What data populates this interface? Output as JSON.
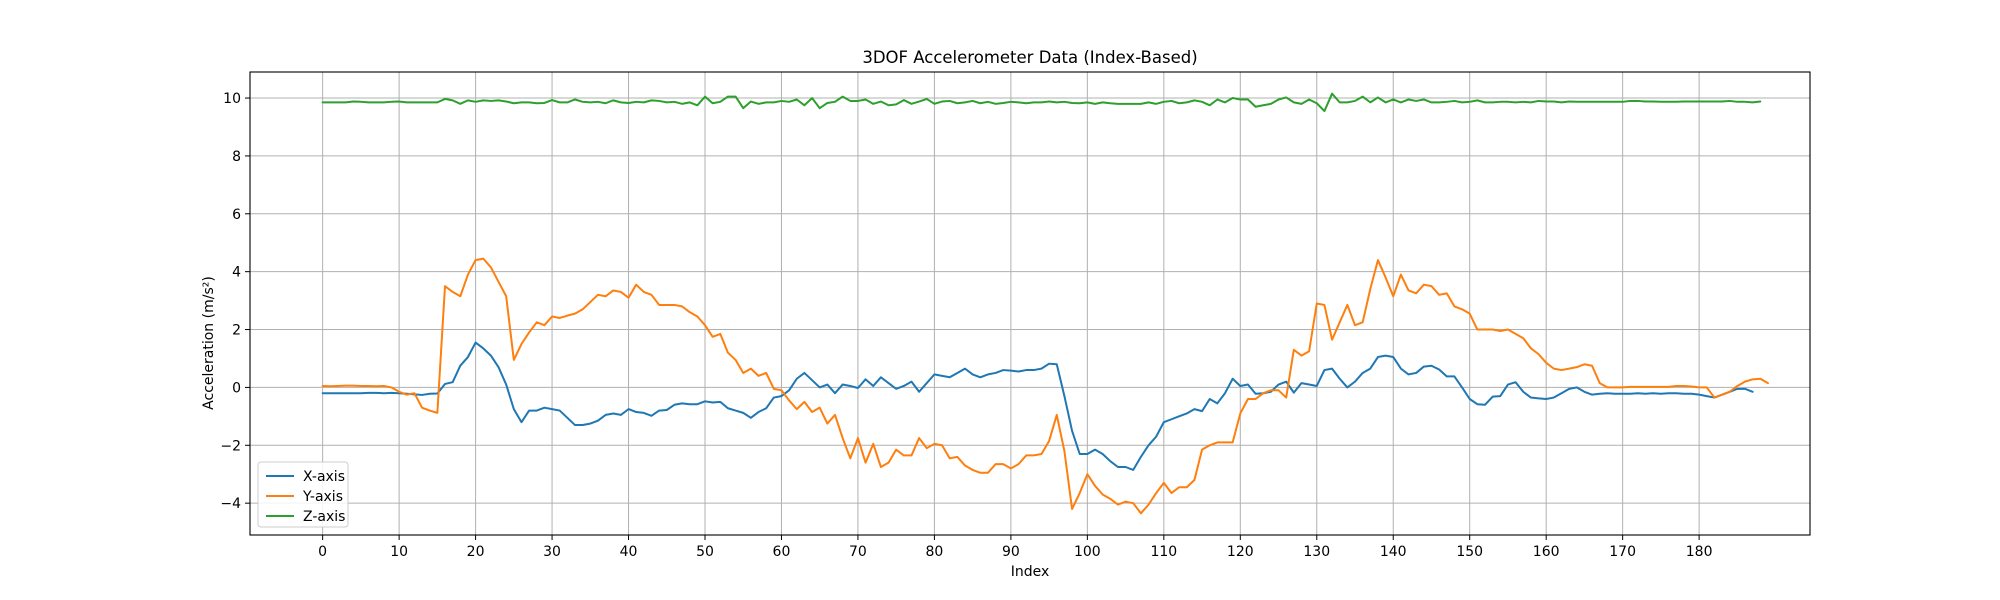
{
  "chart_data": {
    "type": "line",
    "title": "3DOF Accelerometer Data (Index-Based)",
    "xlabel": "Index",
    "ylabel": "Acceleration (m/s²)",
    "xlim": [
      -9.5,
      194.5
    ],
    "ylim": [
      -5.1,
      10.9
    ],
    "xticks": [
      0,
      10,
      20,
      30,
      40,
      50,
      60,
      70,
      80,
      90,
      100,
      110,
      120,
      130,
      140,
      150,
      160,
      170,
      180
    ],
    "yticks": [
      -4,
      -2,
      0,
      2,
      4,
      6,
      8,
      10
    ],
    "grid": true,
    "legend_position": "lower-left",
    "series": [
      {
        "name": "X-axis",
        "color": "#1f77b4",
        "values": [
          -0.2,
          -0.2,
          -0.2,
          -0.2,
          -0.2,
          -0.2,
          -0.19,
          -0.19,
          -0.2,
          -0.19,
          -0.2,
          -0.22,
          -0.24,
          -0.26,
          -0.22,
          -0.21,
          0.12,
          0.18,
          0.75,
          1.05,
          1.55,
          1.35,
          1.1,
          0.7,
          0.1,
          -0.75,
          -1.2,
          -0.8,
          -0.8,
          -0.7,
          -0.75,
          -0.8,
          -1.05,
          -1.3,
          -1.3,
          -1.25,
          -1.15,
          -0.95,
          -0.9,
          -0.95,
          -0.75,
          -0.85,
          -0.88,
          -0.98,
          -0.8,
          -0.78,
          -0.6,
          -0.55,
          -0.58,
          -0.58,
          -0.48,
          -0.52,
          -0.5,
          -0.72,
          -0.8,
          -0.88,
          -1.05,
          -0.85,
          -0.72,
          -0.35,
          -0.3,
          -0.1,
          0.3,
          0.5,
          0.25,
          0.0,
          0.1,
          -0.2,
          0.1,
          0.05,
          -0.02,
          0.28,
          0.05,
          0.35,
          0.15,
          -0.05,
          0.05,
          0.2,
          -0.15,
          0.15,
          0.45,
          0.4,
          0.35,
          0.5,
          0.65,
          0.45,
          0.35,
          0.45,
          0.5,
          0.6,
          0.58,
          0.55,
          0.6,
          0.6,
          0.65,
          0.82,
          0.8,
          -0.3,
          -1.5,
          -2.3,
          -2.3,
          -2.15,
          -2.3,
          -2.55,
          -2.75,
          -2.75,
          -2.85,
          -2.4,
          -2.0,
          -1.7,
          -1.2,
          -1.1,
          -1.0,
          -0.9,
          -0.75,
          -0.82,
          -0.4,
          -0.55,
          -0.2,
          0.3,
          0.05,
          0.1,
          -0.22,
          -0.2,
          -0.15,
          0.1,
          0.2,
          -0.18,
          0.15,
          0.1,
          0.05,
          0.6,
          0.65,
          0.3,
          0.0,
          0.2,
          0.5,
          0.65,
          1.05,
          1.1,
          1.05,
          0.65,
          0.45,
          0.5,
          0.72,
          0.75,
          0.62,
          0.38,
          0.38,
          0.0,
          -0.4,
          -0.58,
          -0.6,
          -0.32,
          -0.3,
          0.1,
          0.18,
          -0.15,
          -0.35,
          -0.38,
          -0.4,
          -0.35,
          -0.2,
          -0.05,
          0.0,
          -0.15,
          -0.25,
          -0.22,
          -0.2,
          -0.22,
          -0.22,
          -0.22,
          -0.2,
          -0.22,
          -0.2,
          -0.22,
          -0.2,
          -0.2,
          -0.22,
          -0.22,
          -0.25,
          -0.3,
          -0.35,
          -0.25,
          -0.15,
          -0.05,
          -0.05,
          -0.15
        ]
      },
      {
        "name": "Y-axis",
        "color": "#ff7f0e",
        "values": [
          0.05,
          0.04,
          0.05,
          0.06,
          0.06,
          0.05,
          0.05,
          0.04,
          0.05,
          0.0,
          -0.15,
          -0.25,
          -0.2,
          -0.7,
          -0.8,
          -0.88,
          3.5,
          3.3,
          3.15,
          3.9,
          4.4,
          4.45,
          4.15,
          3.65,
          3.15,
          0.95,
          1.5,
          1.9,
          2.25,
          2.15,
          2.45,
          2.4,
          2.48,
          2.55,
          2.7,
          2.95,
          3.2,
          3.15,
          3.35,
          3.3,
          3.1,
          3.55,
          3.3,
          3.2,
          2.85,
          2.85,
          2.85,
          2.8,
          2.6,
          2.45,
          2.15,
          1.75,
          1.85,
          1.2,
          0.95,
          0.5,
          0.65,
          0.4,
          0.5,
          -0.05,
          -0.1,
          -0.45,
          -0.75,
          -0.5,
          -0.85,
          -0.7,
          -1.25,
          -0.95,
          -1.75,
          -2.45,
          -1.75,
          -2.6,
          -1.95,
          -2.75,
          -2.6,
          -2.15,
          -2.35,
          -2.35,
          -1.75,
          -2.1,
          -1.95,
          -2.0,
          -2.45,
          -2.4,
          -2.7,
          -2.85,
          -2.95,
          -2.95,
          -2.65,
          -2.65,
          -2.8,
          -2.65,
          -2.35,
          -2.35,
          -2.3,
          -1.85,
          -0.95,
          -2.2,
          -4.2,
          -3.65,
          -3.0,
          -3.4,
          -3.7,
          -3.85,
          -4.05,
          -3.95,
          -4.0,
          -4.35,
          -4.05,
          -3.65,
          -3.3,
          -3.65,
          -3.45,
          -3.45,
          -3.2,
          -2.15,
          -2.0,
          -1.9,
          -1.9,
          -1.9,
          -0.9,
          -0.4,
          -0.4,
          -0.2,
          -0.1,
          -0.1,
          -0.35,
          1.3,
          1.1,
          1.25,
          2.9,
          2.85,
          1.65,
          2.25,
          2.85,
          2.15,
          2.25,
          3.4,
          4.4,
          3.8,
          3.15,
          3.9,
          3.35,
          3.25,
          3.55,
          3.5,
          3.2,
          3.25,
          2.8,
          2.7,
          2.55,
          2.0,
          2.0,
          2.0,
          1.95,
          2.0,
          1.85,
          1.7,
          1.35,
          1.15,
          0.85,
          0.65,
          0.6,
          0.65,
          0.7,
          0.8,
          0.75,
          0.15,
          0.0,
          0.0,
          0.0,
          0.02,
          0.02,
          0.02,
          0.02,
          0.02,
          0.02,
          0.05,
          0.05,
          0.03,
          0.0,
          0.0,
          -0.35,
          -0.25,
          -0.15,
          0.05,
          0.2,
          0.28,
          0.3,
          0.15
        ]
      },
      {
        "name": "Z-axis",
        "color": "#2ca02c",
        "values": [
          9.85,
          9.85,
          9.85,
          9.85,
          9.88,
          9.87,
          9.85,
          9.85,
          9.85,
          9.87,
          9.88,
          9.85,
          9.85,
          9.85,
          9.85,
          9.85,
          9.97,
          9.92,
          9.8,
          9.92,
          9.87,
          9.92,
          9.9,
          9.92,
          9.88,
          9.82,
          9.85,
          9.85,
          9.82,
          9.83,
          9.93,
          9.85,
          9.85,
          9.95,
          9.87,
          9.85,
          9.87,
          9.82,
          9.92,
          9.85,
          9.83,
          9.87,
          9.85,
          9.92,
          9.9,
          9.85,
          9.87,
          9.8,
          9.85,
          9.75,
          10.05,
          9.82,
          9.87,
          10.05,
          10.05,
          9.65,
          9.88,
          9.8,
          9.85,
          9.85,
          9.9,
          9.87,
          9.95,
          9.75,
          10.0,
          9.65,
          9.83,
          9.87,
          10.05,
          9.9,
          9.9,
          9.95,
          9.8,
          9.88,
          9.75,
          9.78,
          9.93,
          9.8,
          9.88,
          9.97,
          9.8,
          9.88,
          9.9,
          9.82,
          9.85,
          9.9,
          9.82,
          9.87,
          9.8,
          9.83,
          9.87,
          9.85,
          9.82,
          9.85,
          9.85,
          9.88,
          9.85,
          9.87,
          9.83,
          9.82,
          9.85,
          9.8,
          9.85,
          9.82,
          9.8,
          9.8,
          9.8,
          9.8,
          9.85,
          9.8,
          9.87,
          9.9,
          9.82,
          9.85,
          9.92,
          9.87,
          9.75,
          9.95,
          9.85,
          10.0,
          9.95,
          9.95,
          9.7,
          9.75,
          9.8,
          9.95,
          10.02,
          9.85,
          9.8,
          9.95,
          9.82,
          9.55,
          10.15,
          9.85,
          9.85,
          9.9,
          10.05,
          9.85,
          10.02,
          9.85,
          9.95,
          9.85,
          9.95,
          9.9,
          9.95,
          9.85,
          9.85,
          9.87,
          9.9,
          9.85,
          9.87,
          9.92,
          9.85,
          9.85,
          9.87,
          9.87,
          9.85,
          9.87,
          9.85,
          9.9,
          9.88,
          9.88,
          9.85,
          9.88,
          9.87,
          9.87,
          9.87,
          9.87,
          9.87,
          9.87,
          9.87,
          9.9,
          9.9,
          9.88,
          9.88,
          9.87,
          9.87,
          9.87,
          9.88,
          9.88,
          9.88,
          9.88,
          9.88,
          9.88,
          9.9,
          9.87,
          9.87,
          9.85,
          9.88
        ]
      }
    ]
  }
}
